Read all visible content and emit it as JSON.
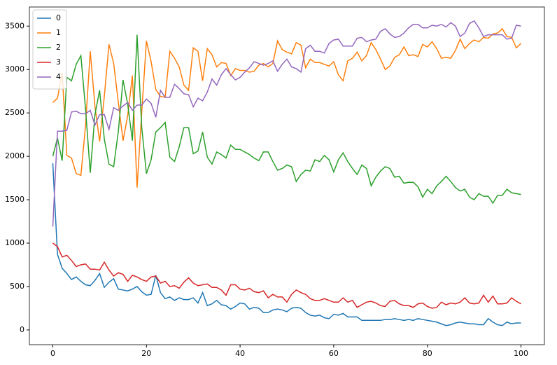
{
  "chart_data": {
    "type": "line",
    "x": [
      0,
      1,
      2,
      3,
      4,
      5,
      6,
      7,
      8,
      9,
      10,
      11,
      12,
      13,
      14,
      15,
      16,
      17,
      18,
      19,
      20,
      21,
      22,
      23,
      24,
      25,
      26,
      27,
      28,
      29,
      30,
      31,
      32,
      33,
      34,
      35,
      36,
      37,
      38,
      39,
      40,
      41,
      42,
      43,
      44,
      45,
      46,
      47,
      48,
      49,
      50,
      51,
      52,
      53,
      54,
      55,
      56,
      57,
      58,
      59,
      60,
      61,
      62,
      63,
      64,
      65,
      66,
      67,
      68,
      69,
      70,
      71,
      72,
      73,
      74,
      75,
      76,
      77,
      78,
      79,
      80,
      81,
      82,
      83,
      84,
      85,
      86,
      87,
      88,
      89,
      90,
      91,
      92,
      93,
      94,
      95,
      96,
      97,
      98,
      99,
      100
    ],
    "series": [
      {
        "name": "0",
        "color": "#1f77b4",
        "values": [
          1920,
          870,
          710,
          650,
          580,
          610,
          560,
          520,
          510,
          570,
          650,
          490,
          550,
          590,
          470,
          460,
          450,
          470,
          500,
          440,
          400,
          410,
          630,
          430,
          360,
          380,
          340,
          370,
          350,
          350,
          370,
          310,
          430,
          280,
          300,
          340,
          290,
          280,
          240,
          270,
          310,
          300,
          240,
          260,
          250,
          200,
          200,
          230,
          240,
          230,
          210,
          250,
          260,
          250,
          200,
          170,
          160,
          170,
          140,
          130,
          180,
          170,
          190,
          150,
          150,
          150,
          110,
          110,
          110,
          110,
          110,
          120,
          120,
          130,
          120,
          110,
          120,
          110,
          130,
          120,
          110,
          100,
          90,
          70,
          50,
          60,
          80,
          90,
          80,
          70,
          70,
          60,
          60,
          130,
          90,
          60,
          50,
          90,
          70,
          80,
          80
        ]
      },
      {
        "name": "1",
        "color": "#ff7f0e",
        "values": [
          2620,
          2670,
          2960,
          2010,
          1980,
          1800,
          1780,
          2360,
          3210,
          2580,
          2170,
          2690,
          3290,
          3070,
          2620,
          2180,
          2470,
          2930,
          1640,
          2510,
          3330,
          3090,
          2770,
          2690,
          2680,
          3210,
          3130,
          3030,
          2820,
          2760,
          3250,
          3210,
          2870,
          3240,
          3170,
          3030,
          3080,
          3070,
          2930,
          3010,
          2990,
          2990,
          2970,
          2980,
          3050,
          3070,
          3030,
          3070,
          3330,
          3230,
          3200,
          3180,
          3310,
          3280,
          3020,
          3120,
          3080,
          3080,
          3060,
          3040,
          3090,
          2940,
          2870,
          3100,
          3130,
          3200,
          3100,
          3160,
          3310,
          3230,
          3120,
          3000,
          3040,
          3140,
          3170,
          3260,
          3160,
          3170,
          3150,
          3290,
          3260,
          3320,
          3240,
          3130,
          3140,
          3130,
          3220,
          3350,
          3240,
          3300,
          3340,
          3320,
          3370,
          3360,
          3410,
          3420,
          3470,
          3380,
          3370,
          3250,
          3300
        ]
      },
      {
        "name": "2",
        "color": "#2ca02c",
        "values": [
          2000,
          2210,
          1950,
          2910,
          2870,
          3060,
          3160,
          2540,
          1810,
          2480,
          2760,
          2200,
          1910,
          1880,
          2290,
          2880,
          2600,
          2180,
          3400,
          2330,
          1800,
          1960,
          2280,
          2330,
          2390,
          1990,
          1940,
          2110,
          2330,
          2330,
          2030,
          2060,
          2280,
          1990,
          1910,
          2050,
          2020,
          1980,
          2130,
          2080,
          2080,
          2050,
          2020,
          1980,
          1950,
          2050,
          2050,
          1940,
          1840,
          1860,
          1900,
          1880,
          1710,
          1790,
          1840,
          1830,
          1960,
          1940,
          2010,
          1960,
          1820,
          1960,
          2040,
          1940,
          1860,
          1790,
          1900,
          1860,
          1660,
          1760,
          1830,
          1880,
          1860,
          1760,
          1770,
          1690,
          1700,
          1700,
          1650,
          1530,
          1620,
          1570,
          1660,
          1710,
          1770,
          1710,
          1640,
          1600,
          1620,
          1530,
          1500,
          1570,
          1540,
          1540,
          1460,
          1550,
          1550,
          1620,
          1580,
          1570,
          1560
        ]
      },
      {
        "name": "3",
        "color": "#d62728",
        "values": [
          1000,
          960,
          840,
          860,
          800,
          730,
          750,
          760,
          700,
          700,
          690,
          780,
          690,
          620,
          660,
          640,
          560,
          630,
          610,
          580,
          560,
          610,
          620,
          540,
          560,
          500,
          510,
          480,
          550,
          600,
          540,
          510,
          520,
          530,
          490,
          490,
          460,
          400,
          520,
          520,
          470,
          460,
          480,
          440,
          430,
          450,
          370,
          410,
          380,
          380,
          320,
          410,
          460,
          430,
          410,
          360,
          340,
          340,
          360,
          340,
          320,
          320,
          370,
          320,
          340,
          260,
          290,
          320,
          330,
          310,
          280,
          270,
          330,
          340,
          300,
          280,
          280,
          260,
          300,
          310,
          270,
          250,
          260,
          320,
          290,
          310,
          300,
          320,
          370,
          310,
          300,
          310,
          400,
          320,
          390,
          300,
          300,
          310,
          370,
          330,
          300
        ]
      },
      {
        "name": "4",
        "color": "#9467bd",
        "values": [
          1190,
          2290,
          2290,
          2300,
          2510,
          2520,
          2490,
          2490,
          2530,
          2360,
          2480,
          2480,
          2310,
          2560,
          2530,
          2580,
          2620,
          2530,
          2590,
          2590,
          2660,
          2610,
          2450,
          2760,
          2680,
          2680,
          2830,
          2780,
          2720,
          2710,
          2570,
          2670,
          2640,
          2740,
          2890,
          2820,
          2940,
          3010,
          2940,
          2880,
          2910,
          2970,
          3020,
          3090,
          3070,
          3050,
          3070,
          3100,
          2980,
          3060,
          3120,
          3030,
          3010,
          2970,
          3240,
          3280,
          3210,
          3210,
          3190,
          3300,
          3340,
          3350,
          3270,
          3270,
          3270,
          3360,
          3370,
          3320,
          3340,
          3350,
          3440,
          3470,
          3410,
          3370,
          3380,
          3420,
          3480,
          3520,
          3520,
          3480,
          3480,
          3510,
          3500,
          3520,
          3490,
          3540,
          3500,
          3380,
          3420,
          3530,
          3560,
          3480,
          3380,
          3400,
          3400,
          3400,
          3400,
          3350,
          3360,
          3510,
          3500
        ]
      }
    ],
    "xlim": [
      -5,
      105
    ],
    "xticks": [
      0,
      20,
      40,
      60,
      80,
      100
    ],
    "ylim": [
      -170,
      3720
    ],
    "yticks": [
      0,
      500,
      1000,
      1500,
      2000,
      2500,
      3000,
      3500
    ],
    "legend": "upper left"
  }
}
